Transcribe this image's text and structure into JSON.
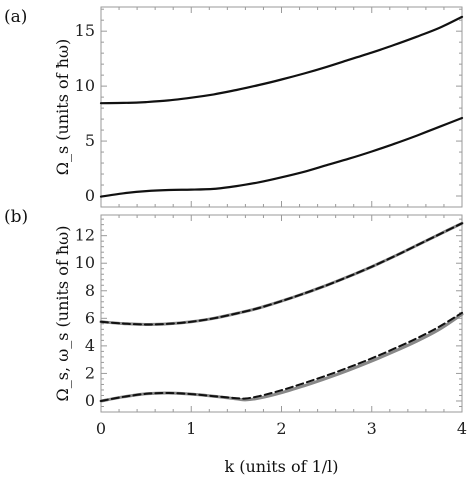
{
  "chart_data": [
    {
      "type": "line",
      "panel_label": "(a)",
      "ylabel": "Ω_s (units of ħω)",
      "xlim": [
        0,
        4
      ],
      "ylim": [
        -1,
        17.2
      ],
      "yticks": [
        0,
        5,
        10,
        15
      ],
      "xticks": [
        0,
        1,
        2,
        3,
        4
      ],
      "show_xtick_labels": false,
      "grid": false,
      "series": [
        {
          "style": "solid",
          "color": "#111111",
          "x": [
            0,
            0.25,
            0.5,
            0.75,
            1.0,
            1.25,
            1.5,
            1.75,
            2.0,
            2.25,
            2.5,
            2.75,
            3.0,
            3.25,
            3.5,
            3.75,
            4.0
          ],
          "values": [
            8.45,
            8.47,
            8.55,
            8.7,
            8.95,
            9.25,
            9.65,
            10.1,
            10.6,
            11.15,
            11.75,
            12.4,
            13.05,
            13.75,
            14.5,
            15.3,
            16.3
          ]
        },
        {
          "style": "solid",
          "color": "#111111",
          "x": [
            0,
            0.25,
            0.5,
            0.75,
            1.0,
            1.25,
            1.5,
            1.75,
            2.0,
            2.25,
            2.5,
            2.75,
            3.0,
            3.25,
            3.5,
            3.75,
            4.0
          ],
          "values": [
            -0.05,
            0.25,
            0.45,
            0.55,
            0.58,
            0.65,
            0.9,
            1.25,
            1.7,
            2.2,
            2.8,
            3.4,
            4.05,
            4.75,
            5.5,
            6.3,
            7.1
          ]
        }
      ]
    },
    {
      "type": "line",
      "panel_label": "(b)",
      "ylabel": "Ω_s, ω_s (units of ħω)",
      "xlabel": "k (units of 1/l)",
      "xlim": [
        0,
        4
      ],
      "ylim": [
        -0.8,
        13.5
      ],
      "yticks": [
        0,
        2,
        4,
        6,
        8,
        10,
        12
      ],
      "xticks": [
        0,
        1,
        2,
        3,
        4
      ],
      "show_xtick_labels": true,
      "grid": false,
      "series": [
        {
          "style": "solid",
          "color": "#888888",
          "x": [
            0,
            0.25,
            0.5,
            0.75,
            1.0,
            1.25,
            1.5,
            1.75,
            2.0,
            2.25,
            2.5,
            2.75,
            3.0,
            3.25,
            3.5,
            3.75,
            4.0
          ],
          "values": [
            5.75,
            5.62,
            5.55,
            5.6,
            5.75,
            6.0,
            6.35,
            6.75,
            7.25,
            7.8,
            8.4,
            9.05,
            9.75,
            10.5,
            11.3,
            12.1,
            12.9
          ]
        },
        {
          "style": "dashed",
          "color": "#111111",
          "x": [
            0,
            0.25,
            0.5,
            0.75,
            1.0,
            1.25,
            1.5,
            1.75,
            2.0,
            2.25,
            2.5,
            2.75,
            3.0,
            3.25,
            3.5,
            3.75,
            4.0
          ],
          "values": [
            5.75,
            5.62,
            5.55,
            5.6,
            5.75,
            6.0,
            6.35,
            6.75,
            7.25,
            7.8,
            8.4,
            9.05,
            9.75,
            10.5,
            11.3,
            12.1,
            12.9
          ]
        },
        {
          "style": "solid",
          "color": "#888888",
          "x": [
            0,
            0.25,
            0.5,
            0.75,
            1.0,
            1.25,
            1.5,
            1.6,
            1.75,
            2.0,
            2.25,
            2.5,
            2.75,
            3.0,
            3.25,
            3.5,
            3.75,
            4.0
          ],
          "values": [
            0.0,
            0.3,
            0.52,
            0.58,
            0.5,
            0.35,
            0.15,
            0.08,
            0.2,
            0.6,
            1.1,
            1.65,
            2.25,
            2.9,
            3.6,
            4.35,
            5.2,
            6.3
          ]
        },
        {
          "style": "dashed",
          "color": "#111111",
          "x": [
            0,
            0.25,
            0.5,
            0.75,
            1.0,
            1.25,
            1.5,
            1.6,
            1.75,
            2.0,
            2.25,
            2.5,
            2.75,
            3.0,
            3.25,
            3.5,
            3.75,
            4.0
          ],
          "values": [
            0.0,
            0.3,
            0.52,
            0.58,
            0.5,
            0.35,
            0.2,
            0.18,
            0.35,
            0.78,
            1.3,
            1.85,
            2.45,
            3.1,
            3.8,
            4.55,
            5.4,
            6.4
          ]
        }
      ]
    }
  ]
}
